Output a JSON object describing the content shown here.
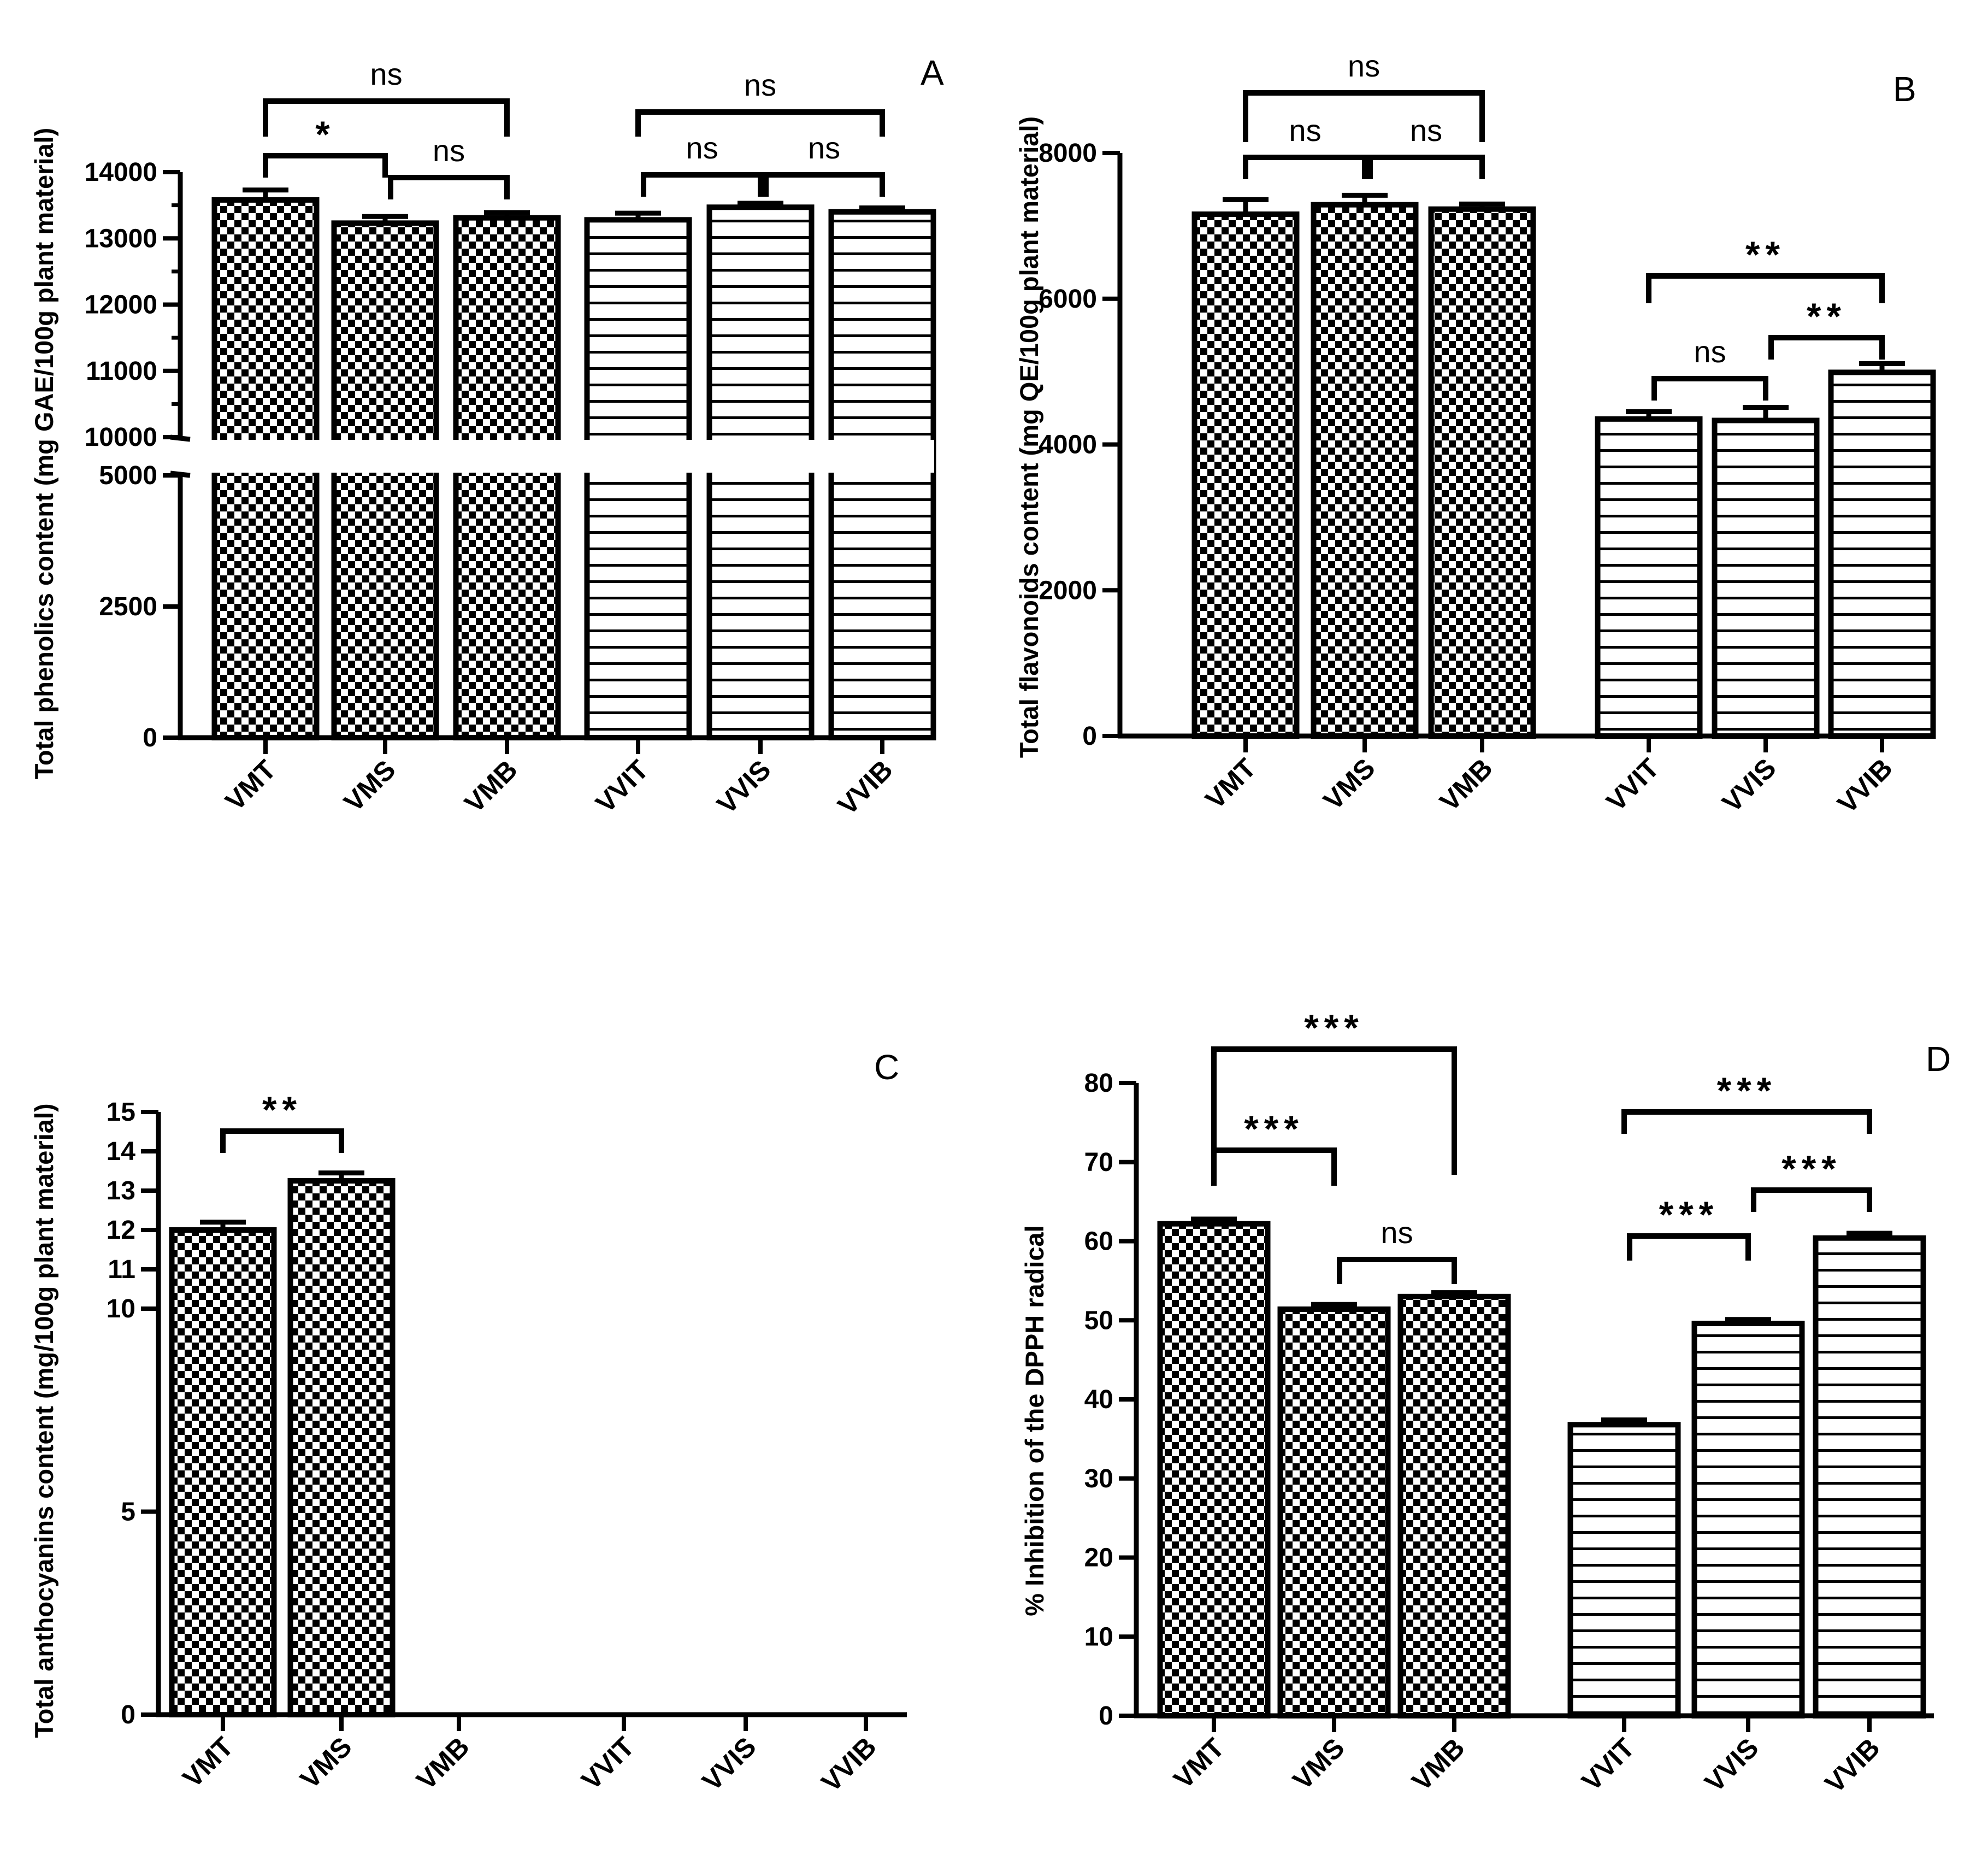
{
  "colors": {
    "ink": "#000000",
    "background": "#ffffff"
  },
  "chart_data": [
    {
      "panel": "A",
      "type": "bar",
      "ylabel": "Total phenolics content (mg GAE/100g plant material)",
      "categories": [
        "VMT",
        "VMS",
        "VMB",
        "VVIT",
        "VVIS",
        "VVIB"
      ],
      "patterns": [
        "checker",
        "checker",
        "checker",
        "hstripe",
        "hstripe",
        "hstripe"
      ],
      "values": [
        13580,
        13230,
        13310,
        13280,
        13470,
        13400
      ],
      "errors": [
        150,
        100,
        80,
        100,
        60,
        60
      ],
      "ylim": [
        0,
        14000
      ],
      "axis_break": [
        5000,
        10000
      ],
      "yticks": [
        0,
        2500,
        5000,
        10000,
        11000,
        12000,
        13000,
        14000
      ],
      "yticklabels": [
        "0",
        "2500",
        "5000",
        "10000",
        "11000",
        "12000",
        "13000",
        "14000"
      ],
      "significance": [
        {
          "from": 0,
          "to": 2,
          "label": "ns"
        },
        {
          "from": 0,
          "to": 1,
          "label": "*"
        },
        {
          "from": 1,
          "to": 2,
          "label": "ns"
        },
        {
          "from": 3,
          "to": 5,
          "label": "ns"
        },
        {
          "from": 3,
          "to": 4,
          "label": "ns"
        },
        {
          "from": 4,
          "to": 5,
          "label": "ns"
        }
      ]
    },
    {
      "panel": "B",
      "type": "bar",
      "ylabel": "Total flavonoids content (mg QE/100g plant material)",
      "categories": [
        "VMT",
        "VMS",
        "VMB",
        "VVIT",
        "VVIS",
        "VVIB"
      ],
      "patterns": [
        "checker",
        "checker",
        "checker",
        "hstripe",
        "hstripe",
        "hstripe"
      ],
      "values": [
        7160,
        7290,
        7230,
        4350,
        4330,
        4990
      ],
      "errors": [
        200,
        130,
        70,
        100,
        180,
        120
      ],
      "ylim": [
        0,
        8000
      ],
      "yticks": [
        0,
        2000,
        4000,
        6000,
        8000
      ],
      "yticklabels": [
        "0",
        "2000",
        "4000",
        "6000",
        "8000"
      ],
      "significance": [
        {
          "from": 0,
          "to": 2,
          "label": "ns"
        },
        {
          "from": 0,
          "to": 1,
          "label": "ns"
        },
        {
          "from": 1,
          "to": 2,
          "label": "ns"
        },
        {
          "from": 3,
          "to": 5,
          "label": "**"
        },
        {
          "from": 3,
          "to": 4,
          "label": "ns"
        },
        {
          "from": 4,
          "to": 5,
          "label": "**"
        }
      ]
    },
    {
      "panel": "C",
      "type": "bar",
      "ylabel": "Total anthocyanins content (mg/100g plant material)",
      "categories": [
        "VMT",
        "VMS",
        "VMB",
        "VVIT",
        "VVIS",
        "VVIB"
      ],
      "patterns": [
        "checker",
        "checker",
        "none",
        "none",
        "none",
        "none"
      ],
      "values": [
        12.0,
        13.25,
        0,
        0,
        0,
        0
      ],
      "errors": [
        0.2,
        0.2,
        0,
        0,
        0,
        0
      ],
      "ylim": [
        0,
        15
      ],
      "yticks": [
        0,
        5,
        10,
        11,
        12,
        13,
        14,
        15
      ],
      "yticklabels": [
        "0",
        "5",
        "10",
        "11",
        "12",
        "13",
        "14",
        "15"
      ],
      "significance": [
        {
          "from": 0,
          "to": 1,
          "label": "**"
        }
      ]
    },
    {
      "panel": "D",
      "type": "bar",
      "ylabel": "% Inhibition of the DPPH radical",
      "categories": [
        "VMT",
        "VMS",
        "VMB",
        "VVIT",
        "VVIS",
        "VVIB"
      ],
      "patterns": [
        "checker",
        "checker",
        "checker",
        "hstripe",
        "hstripe",
        "hstripe"
      ],
      "values": [
        62.2,
        51.4,
        53.0,
        36.8,
        49.6,
        60.4
      ],
      "errors": [
        0.6,
        0.6,
        0.5,
        0.6,
        0.5,
        0.6
      ],
      "ylim": [
        0,
        80
      ],
      "yticks": [
        0,
        10,
        20,
        30,
        40,
        50,
        60,
        70,
        80
      ],
      "yticklabels": [
        "0",
        "10",
        "20",
        "30",
        "40",
        "50",
        "60",
        "70",
        "80"
      ],
      "significance": [
        {
          "from": 0,
          "to": 2,
          "label": "***"
        },
        {
          "from": 0,
          "to": 1,
          "label": "***"
        },
        {
          "from": 1,
          "to": 2,
          "label": "ns"
        },
        {
          "from": 3,
          "to": 5,
          "label": "***"
        },
        {
          "from": 3,
          "to": 4,
          "label": "***"
        },
        {
          "from": 4,
          "to": 5,
          "label": "***"
        }
      ]
    }
  ]
}
